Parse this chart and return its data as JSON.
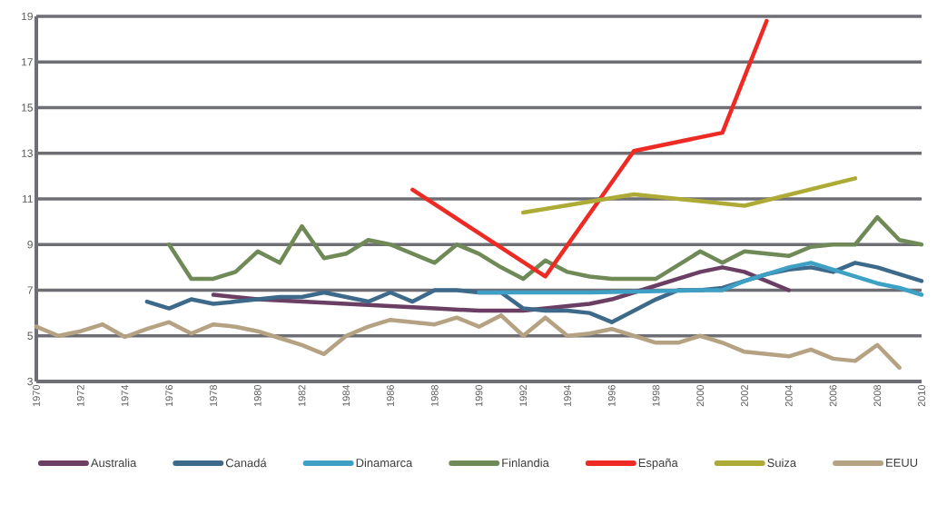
{
  "chart_data": {
    "type": "line",
    "xlim": [
      1970,
      2010
    ],
    "ylim": [
      3,
      19
    ],
    "xticks": [
      1970,
      1972,
      1974,
      1976,
      1978,
      1980,
      1982,
      1984,
      1986,
      1988,
      1990,
      1992,
      1994,
      1996,
      1998,
      2000,
      2002,
      2004,
      2006,
      2008,
      2010
    ],
    "yticks": [
      3,
      5,
      7,
      9,
      11,
      13,
      15,
      17,
      19
    ],
    "grid": "y",
    "legend": "bottom",
    "marker": "none",
    "line_style": "solid",
    "series": [
      {
        "name": "Australia",
        "color": "#6b3f63",
        "x": [
          1978,
          1980,
          1982,
          1984,
          1986,
          1988,
          1990,
          1992,
          1993,
          1994,
          1995,
          1996,
          1997,
          1998,
          1999,
          2000,
          2001,
          2002,
          2003,
          2004
        ],
        "values": [
          6.8,
          6.6,
          6.5,
          6.4,
          6.3,
          6.2,
          6.1,
          6.1,
          6.2,
          6.3,
          6.4,
          6.6,
          6.9,
          7.2,
          7.5,
          7.8,
          8.0,
          7.8,
          7.4,
          7.0
        ]
      },
      {
        "name": "Canadá",
        "color": "#3d6a8a",
        "x": [
          1975,
          1976,
          1977,
          1978,
          1979,
          1980,
          1981,
          1982,
          1983,
          1984,
          1985,
          1986,
          1987,
          1988,
          1989,
          1990,
          1991,
          1992,
          1993,
          1994,
          1995,
          1996,
          1997,
          1998,
          1999,
          2000,
          2001,
          2002,
          2003,
          2004,
          2005,
          2006,
          2007,
          2008,
          2009,
          2010
        ],
        "values": [
          6.5,
          6.2,
          6.6,
          6.4,
          6.5,
          6.6,
          6.7,
          6.7,
          6.9,
          6.7,
          6.5,
          6.9,
          6.5,
          7.0,
          7.0,
          6.9,
          6.9,
          6.2,
          6.1,
          6.1,
          6.0,
          5.6,
          6.1,
          6.6,
          7.0,
          7.0,
          7.1,
          7.4,
          7.7,
          7.9,
          8.0,
          7.8,
          8.2,
          8.0,
          7.7,
          7.4
        ]
      },
      {
        "name": "Dinamarca",
        "color": "#3ea0c4",
        "x": [
          1990,
          1995,
          2000,
          2001,
          2002,
          2003,
          2004,
          2005,
          2006,
          2007,
          2008,
          2009,
          2010
        ],
        "values": [
          6.9,
          6.9,
          7.0,
          7.0,
          7.4,
          7.7,
          8.0,
          8.2,
          7.9,
          7.6,
          7.3,
          7.1,
          6.8
        ]
      },
      {
        "name": "Finlandia",
        "color": "#6f8a57",
        "x": [
          1976,
          1977,
          1978,
          1979,
          1980,
          1981,
          1982,
          1983,
          1984,
          1985,
          1986,
          1987,
          1988,
          1989,
          1990,
          1991,
          1992,
          1993,
          1994,
          1995,
          1996,
          1997,
          1998,
          1999,
          2000,
          2001,
          2002,
          2003,
          2004,
          2005,
          2006,
          2007,
          2008,
          2009,
          2010
        ],
        "values": [
          9.0,
          7.5,
          7.5,
          7.8,
          8.7,
          8.2,
          9.8,
          8.4,
          8.6,
          9.2,
          9.0,
          8.6,
          8.2,
          9.0,
          8.6,
          8.0,
          7.5,
          8.3,
          7.8,
          7.6,
          7.5,
          7.5,
          7.5,
          8.1,
          8.7,
          8.2,
          8.7,
          8.6,
          8.5,
          8.9,
          9.0,
          9.0,
          10.2,
          9.2,
          9.0
        ]
      },
      {
        "name": "España",
        "color": "#ee2a24",
        "x": [
          1987,
          1993,
          1997,
          2001,
          2003
        ],
        "values": [
          11.4,
          7.6,
          13.1,
          13.9,
          18.8
        ]
      },
      {
        "name": "Suiza",
        "color": "#aeaa36",
        "x": [
          1992,
          1997,
          2002,
          2007
        ],
        "values": [
          10.4,
          11.2,
          10.7,
          11.9
        ]
      },
      {
        "name": "EEUU",
        "color": "#b5a283",
        "x": [
          1970,
          1971,
          1972,
          1973,
          1974,
          1975,
          1976,
          1977,
          1978,
          1979,
          1980,
          1981,
          1982,
          1983,
          1984,
          1985,
          1986,
          1987,
          1988,
          1989,
          1990,
          1991,
          1992,
          1993,
          1994,
          1995,
          1996,
          1997,
          1998,
          1999,
          2000,
          2001,
          2002,
          2003,
          2004,
          2005,
          2006,
          2007,
          2008,
          2009
        ],
        "values": [
          5.4,
          5.0,
          5.2,
          5.5,
          4.95,
          5.3,
          5.6,
          5.1,
          5.5,
          5.4,
          5.2,
          4.9,
          4.6,
          4.2,
          5.0,
          5.4,
          5.7,
          5.6,
          5.5,
          5.8,
          5.4,
          5.9,
          5.0,
          5.8,
          5.0,
          5.1,
          5.3,
          5.0,
          4.7,
          4.7,
          5.0,
          4.7,
          4.3,
          4.2,
          4.1,
          4.4,
          4.0,
          3.9,
          4.6,
          3.6
        ]
      }
    ]
  }
}
